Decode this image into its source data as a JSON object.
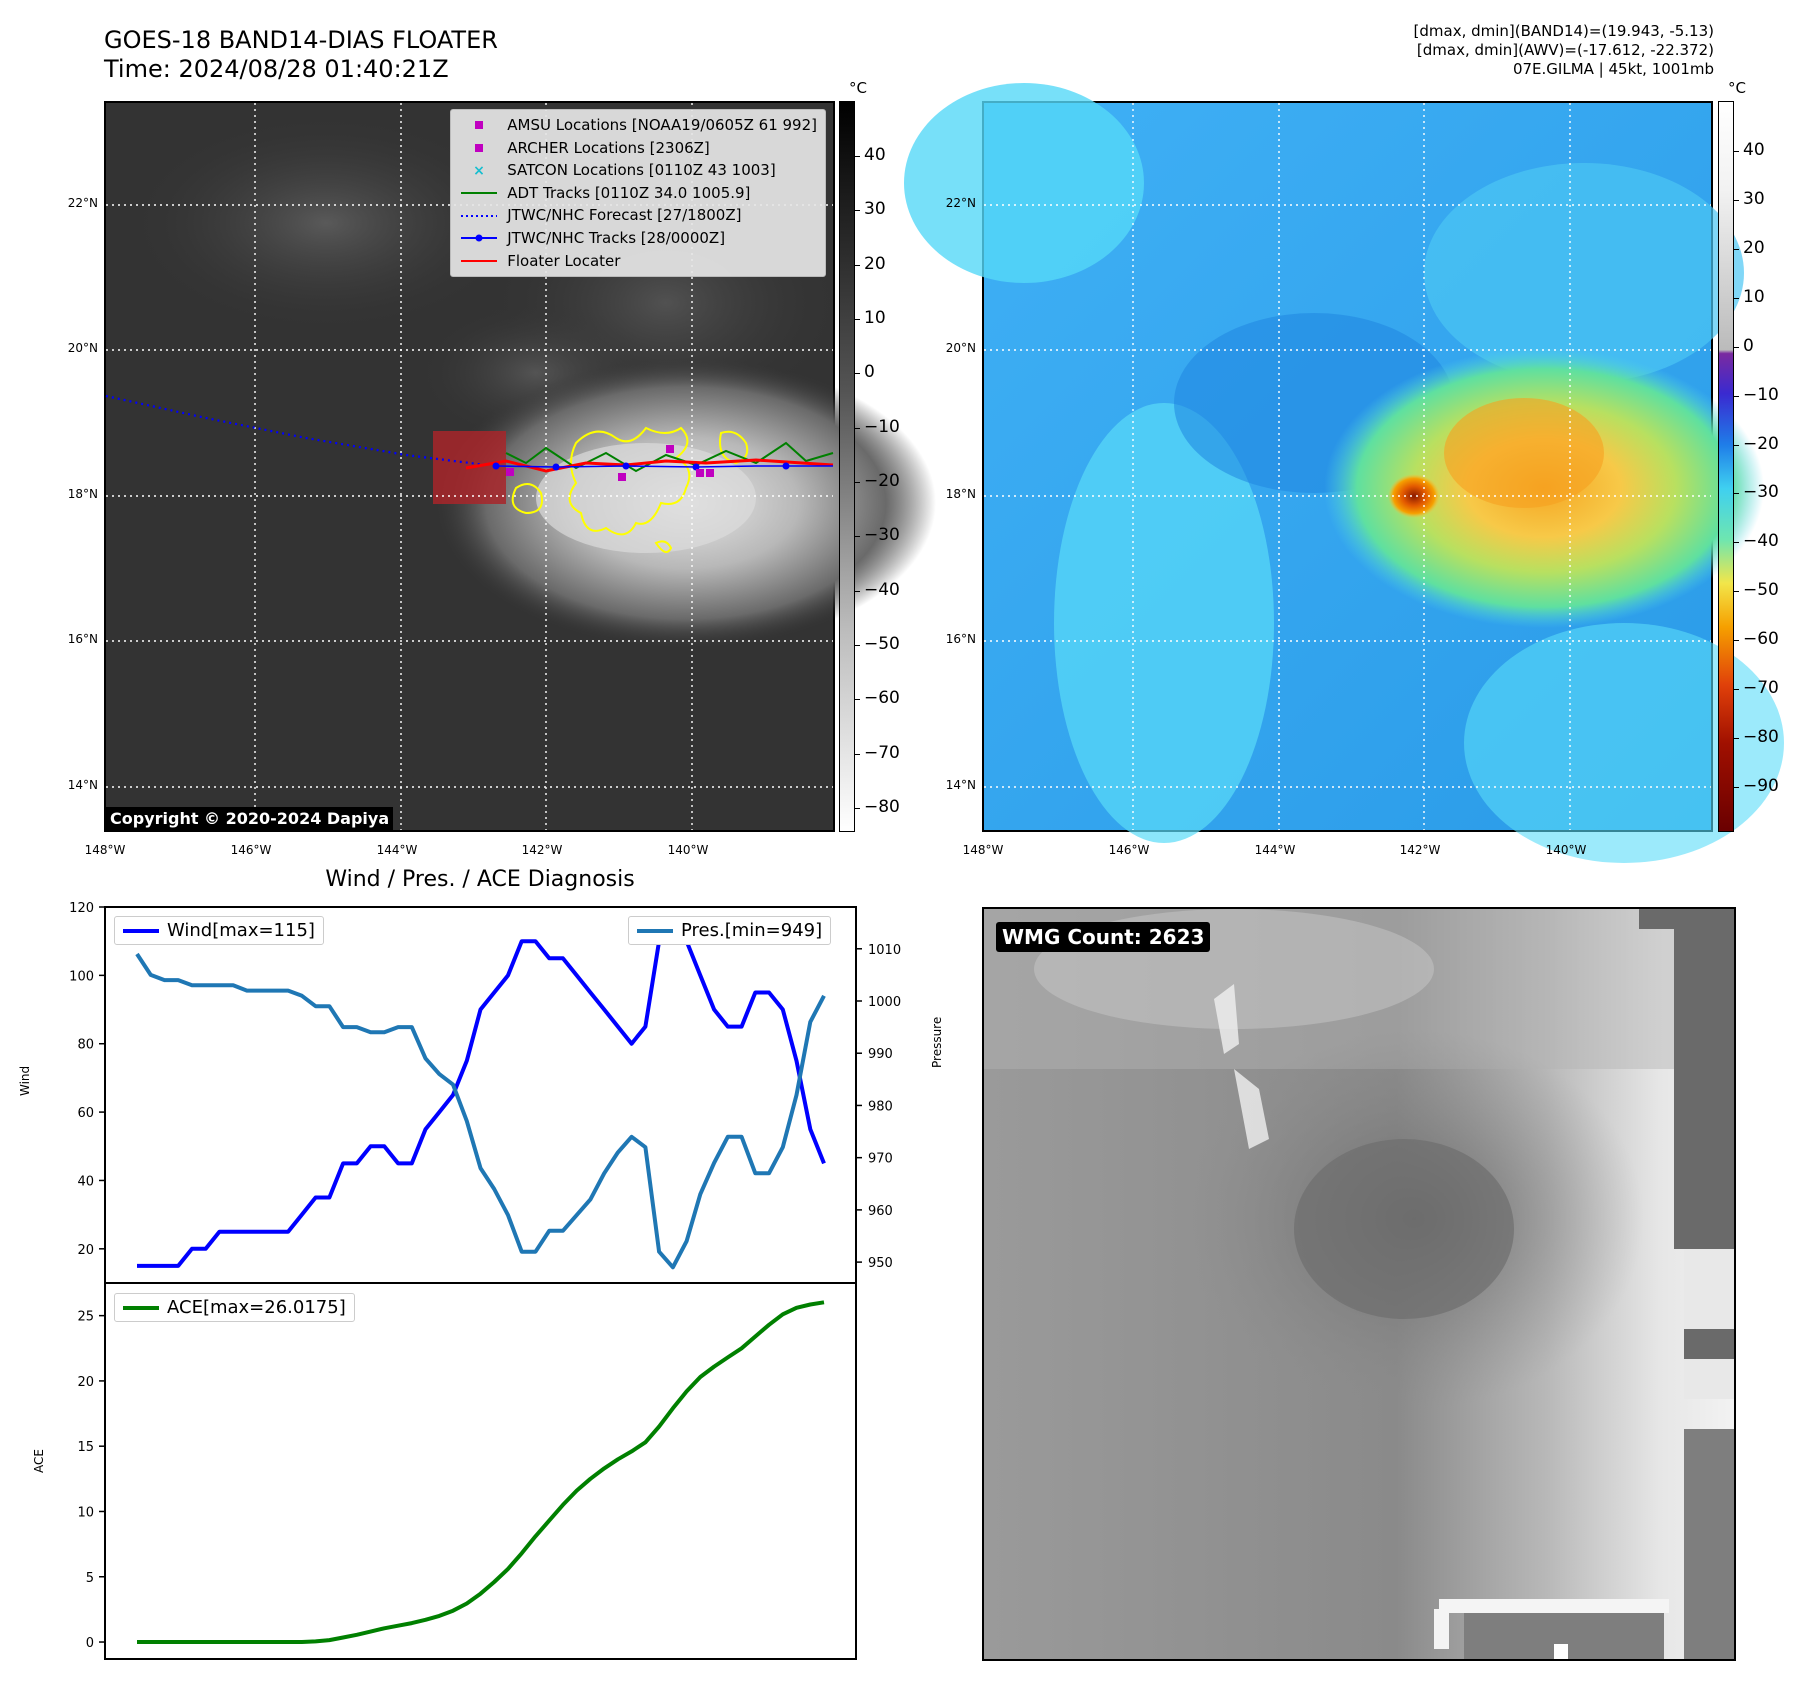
{
  "header": {
    "title_line1": "GOES-18 BAND14-DIAS FLOATER",
    "title_line2": "Time: 2024/08/28 01:40:21Z",
    "info_line1": "[dmax, dmin](BAND14)=(19.943, -5.13)",
    "info_line2": "[dmax, dmin](AWV)=(-17.612, -22.372)",
    "info_line3": "07E.GILMA | 45kt, 1001mb"
  },
  "map": {
    "lat_labels": [
      "22°N",
      "20°N",
      "18°N",
      "16°N",
      "14°N"
    ],
    "lon_labels": [
      "148°W",
      "146°W",
      "144°W",
      "142°W",
      "140°W"
    ],
    "unit": "°C"
  },
  "ir_panel": {
    "legend": [
      {
        "label": "AMSU Locations [NOAA19/0605Z 61 992]",
        "symbol": "square",
        "color": "#c000c0"
      },
      {
        "label": "ARCHER Locations [2306Z]",
        "symbol": "square",
        "color": "#c000c0"
      },
      {
        "label": "SATCON Locations [0110Z 43 1003]",
        "symbol": "x",
        "color": "#17becf"
      },
      {
        "label": "ADT Tracks [0110Z 34.0 1005.9]",
        "symbol": "line",
        "color": "#008000"
      },
      {
        "label": "JTWC/NHC Forecast [27/1800Z]",
        "symbol": "dotted",
        "color": "#0000ff"
      },
      {
        "label": "JTWC/NHC Tracks [28/0000Z]",
        "symbol": "line-dot",
        "color": "#0000ff"
      },
      {
        "label": "Floater Locater",
        "symbol": "line",
        "color": "#ff0000"
      }
    ],
    "copyright": "Copyright © 2020-2024 Dapiya",
    "colorbar_ticks": [
      "40",
      "30",
      "20",
      "10",
      "0",
      "−10",
      "−20",
      "−30",
      "−40",
      "−50",
      "−60",
      "−70",
      "−80"
    ]
  },
  "wv_panel": {
    "colorbar_ticks": [
      "40",
      "30",
      "20",
      "10",
      "0",
      "−10",
      "−20",
      "−30",
      "−40",
      "−50",
      "−60",
      "−70",
      "−80",
      "−90"
    ]
  },
  "wmg_panel": {
    "label": "WMG Count: 2623"
  },
  "chart_data": [
    {
      "type": "line",
      "title": "Wind / Pres. / ACE Diagnosis",
      "ylabel": "Wind",
      "ylabel_right": "Pressure",
      "ylim": [
        10,
        120
      ],
      "ylim_right": [
        946,
        1018
      ],
      "yticks": [
        20,
        40,
        60,
        80,
        100,
        120
      ],
      "yticks_right": [
        950,
        960,
        970,
        980,
        990,
        1000,
        1010
      ],
      "series": [
        {
          "name": "Wind[max=115]",
          "axis": "left",
          "color": "#0000ff",
          "values": [
            15,
            15,
            15,
            15,
            20,
            20,
            25,
            25,
            25,
            25,
            25,
            25,
            30,
            35,
            35,
            45,
            45,
            50,
            50,
            45,
            45,
            55,
            60,
            65,
            75,
            90,
            95,
            100,
            110,
            110,
            105,
            105,
            100,
            95,
            90,
            85,
            80,
            85,
            110,
            115,
            110,
            100,
            90,
            85,
            85,
            95,
            95,
            90,
            75,
            55,
            45
          ]
        },
        {
          "name": "Pres.[min=949]",
          "axis": "right",
          "color": "#1f77b4",
          "values": [
            1009,
            1005,
            1004,
            1004,
            1003,
            1003,
            1003,
            1003,
            1002,
            1002,
            1002,
            1002,
            1001,
            999,
            999,
            995,
            995,
            994,
            994,
            995,
            995,
            989,
            986,
            984,
            977,
            968,
            964,
            959,
            952,
            952,
            956,
            956,
            959,
            962,
            967,
            971,
            974,
            972,
            952,
            949,
            954,
            963,
            969,
            974,
            974,
            967,
            967,
            972,
            982,
            996,
            1001
          ]
        }
      ]
    },
    {
      "type": "line",
      "ylabel": "ACE",
      "ylim": [
        -1.3,
        27.5
      ],
      "yticks": [
        0,
        5,
        10,
        15,
        20,
        25
      ],
      "series": [
        {
          "name": "ACE[max=26.0175]",
          "color": "#008000",
          "values": [
            0,
            0,
            0,
            0,
            0,
            0,
            0,
            0,
            0,
            0,
            0,
            0,
            0,
            0.05,
            0.15,
            0.35,
            0.55,
            0.8,
            1.05,
            1.25,
            1.45,
            1.7,
            2,
            2.4,
            2.95,
            3.7,
            4.6,
            5.6,
            6.8,
            8.1,
            9.3,
            10.5,
            11.6,
            12.5,
            13.3,
            14,
            14.6,
            15.3,
            16.5,
            17.9,
            19.2,
            20.3,
            21.1,
            21.8,
            22.5,
            23.4,
            24.3,
            25.1,
            25.6,
            25.85,
            26.02
          ]
        }
      ]
    }
  ]
}
